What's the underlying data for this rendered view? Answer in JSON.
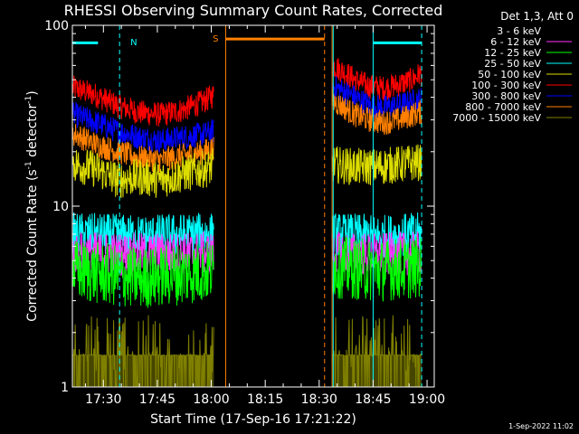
{
  "chart_data": {
    "type": "line",
    "title": "RHESSI Observing Summary Count Rates, Corrected",
    "xlabel": "Start Time (17-Sep-16 17:21:22)",
    "ylabel_main": "Corrected Count Rate (s",
    "ylabel_sup1": "-1",
    "ylabel_mid": " detector",
    "ylabel_sup2": "-1",
    "ylabel_end": ")",
    "yscale": "log",
    "ylim": [
      1,
      100
    ],
    "xlim_minutes": [
      1041.37,
      1142
    ],
    "x_ticks": [
      {
        "label": "17:30",
        "minute": 1050
      },
      {
        "label": "17:45",
        "minute": 1065
      },
      {
        "label": "18:00",
        "minute": 1080
      },
      {
        "label": "18:15",
        "minute": 1095
      },
      {
        "label": "18:30",
        "minute": 1110
      },
      {
        "label": "18:45",
        "minute": 1125
      },
      {
        "label": "19:00",
        "minute": 1140
      }
    ],
    "y_ticks": [
      {
        "label": "1",
        "value": 1
      },
      {
        "label": "10",
        "value": 10
      },
      {
        "label": "100",
        "value": 100
      }
    ],
    "legend": {
      "title": "Det 1,3, Att 0",
      "placement": "right",
      "entries": [
        {
          "label": "3 - 6 keV",
          "color": "#000000"
        },
        {
          "label": "6 - 12 keV",
          "color": "#ff33ff"
        },
        {
          "label": "12 - 25 keV",
          "color": "#00ff00"
        },
        {
          "label": "25 - 50 keV",
          "color": "#00ffff"
        },
        {
          "label": "50 - 100 keV",
          "color": "#dddd00"
        },
        {
          "label": "100 - 300 keV",
          "color": "#ff0000"
        },
        {
          "label": "300 - 800 keV",
          "color": "#0000ff"
        },
        {
          "label": "800 - 7000 keV",
          "color": "#ff8000"
        },
        {
          "label": "7000 - 15000 keV",
          "color": "#808000"
        }
      ]
    },
    "segments": [
      [
        1041.5,
        1080.7
      ],
      [
        1113.6,
        1138.5
      ]
    ],
    "series": [
      {
        "name": "100 - 300 keV",
        "color": "#ff0000",
        "seg1": [
          [
            1042,
            45
          ],
          [
            1048,
            41
          ],
          [
            1054,
            36
          ],
          [
            1060,
            33
          ],
          [
            1066,
            32
          ],
          [
            1072,
            34
          ],
          [
            1078,
            38
          ],
          [
            1080.5,
            41
          ]
        ],
        "seg2": [
          [
            1114,
            60
          ],
          [
            1117,
            55
          ],
          [
            1120,
            50
          ],
          [
            1124,
            46
          ],
          [
            1128,
            45
          ],
          [
            1132,
            47
          ],
          [
            1136,
            50
          ],
          [
            1138,
            54
          ]
        ],
        "noise": 0.08
      },
      {
        "name": "300 - 800 keV",
        "color": "#0000ff",
        "seg1": [
          [
            1042,
            32
          ],
          [
            1048,
            29
          ],
          [
            1054,
            26
          ],
          [
            1060,
            24
          ],
          [
            1066,
            23
          ],
          [
            1072,
            24
          ],
          [
            1078,
            25
          ],
          [
            1080.5,
            26
          ]
        ],
        "seg2": [
          [
            1114,
            46
          ],
          [
            1117,
            43
          ],
          [
            1120,
            40
          ],
          [
            1124,
            36
          ],
          [
            1128,
            35
          ],
          [
            1132,
            36
          ],
          [
            1136,
            38
          ],
          [
            1138,
            39
          ]
        ],
        "noise": 0.08
      },
      {
        "name": "800 - 7000 keV",
        "color": "#ff8000",
        "seg1": [
          [
            1042,
            25
          ],
          [
            1048,
            22
          ],
          [
            1054,
            20
          ],
          [
            1060,
            18.5
          ],
          [
            1066,
            18
          ],
          [
            1072,
            19
          ],
          [
            1078,
            20
          ],
          [
            1080.5,
            21
          ]
        ],
        "seg2": [
          [
            1114,
            38
          ],
          [
            1117,
            35
          ],
          [
            1120,
            32
          ],
          [
            1124,
            30
          ],
          [
            1128,
            29
          ],
          [
            1132,
            30
          ],
          [
            1136,
            32
          ],
          [
            1138,
            33
          ]
        ],
        "noise": 0.08
      },
      {
        "name": "50 - 100 keV",
        "color": "#dddd00",
        "seg1": [
          [
            1042,
            17
          ],
          [
            1048,
            16
          ],
          [
            1054,
            14
          ],
          [
            1060,
            14.5
          ],
          [
            1066,
            14
          ],
          [
            1072,
            15
          ],
          [
            1078,
            16
          ],
          [
            1080.5,
            16.5
          ]
        ],
        "seg2": [
          [
            1114,
            17
          ],
          [
            1120,
            16.5
          ],
          [
            1126,
            16.5
          ],
          [
            1132,
            17
          ],
          [
            1138,
            17.5
          ]
        ],
        "noise": 0.12
      },
      {
        "name": "25 - 50 keV",
        "color": "#00ffff",
        "seg1": [
          [
            1042,
            7
          ],
          [
            1060,
            6.8
          ],
          [
            1080.5,
            7
          ]
        ],
        "seg2": [
          [
            1114,
            7
          ],
          [
            1126,
            6.8
          ],
          [
            1138,
            7
          ]
        ],
        "noise": 0.14
      },
      {
        "name": "6 - 12 keV",
        "color": "#ff33ff",
        "seg1": [
          [
            1042,
            5.5
          ],
          [
            1060,
            5.4
          ],
          [
            1080.5,
            5.5
          ]
        ],
        "seg2": [
          [
            1114,
            5.5
          ],
          [
            1126,
            5.4
          ],
          [
            1138,
            5.5
          ]
        ],
        "noise": 0.14
      },
      {
        "name": "12 - 25 keV",
        "color": "#00ff00",
        "seg1": [
          [
            1042,
            4.4
          ],
          [
            1060,
            4
          ],
          [
            1080.5,
            4.4
          ]
        ],
        "seg2": [
          [
            1114,
            4.6
          ],
          [
            1126,
            4.4
          ],
          [
            1138,
            4.6
          ]
        ],
        "noise": 0.2
      },
      {
        "name": "3 - 6 keV",
        "color": "#000000",
        "seg1": [
          [
            1042,
            1.5
          ],
          [
            1080.5,
            1.5
          ]
        ],
        "seg2": [
          [
            1114,
            1.5
          ],
          [
            1138,
            1.5
          ]
        ],
        "noise": 0.3
      },
      {
        "name": "7000 - 15000 keV",
        "color": "#808000",
        "seg1": [
          [
            1042,
            1.4
          ],
          [
            1080.5,
            1.4
          ]
        ],
        "seg2": [
          [
            1114,
            1.4
          ],
          [
            1138,
            1.4
          ]
        ],
        "noise": 0.3
      }
    ],
    "flags": [
      {
        "label": "N",
        "color": "#00ffff",
        "bar_x": [
          1041.5,
          1048.5
        ],
        "line_x": 1054.5,
        "level": 80
      },
      {
        "label": "S",
        "color": "#ff8000",
        "bar_x": [
          1084,
          1111.5
        ],
        "line_x": 1084,
        "line_x2": 1111.5,
        "level": 84
      },
      {
        "label": "",
        "color": "#00ffff",
        "bar_x": [
          1125,
          1138.5
        ],
        "line_x": 1125,
        "line_x2": 1138.5,
        "level": 80
      }
    ],
    "x_reference_labels": {
      "n_label_minute": 1057.5,
      "s_label_minute": 1082
    }
  },
  "footer": {
    "timestamp": "1-Sep-2022 11:02"
  }
}
